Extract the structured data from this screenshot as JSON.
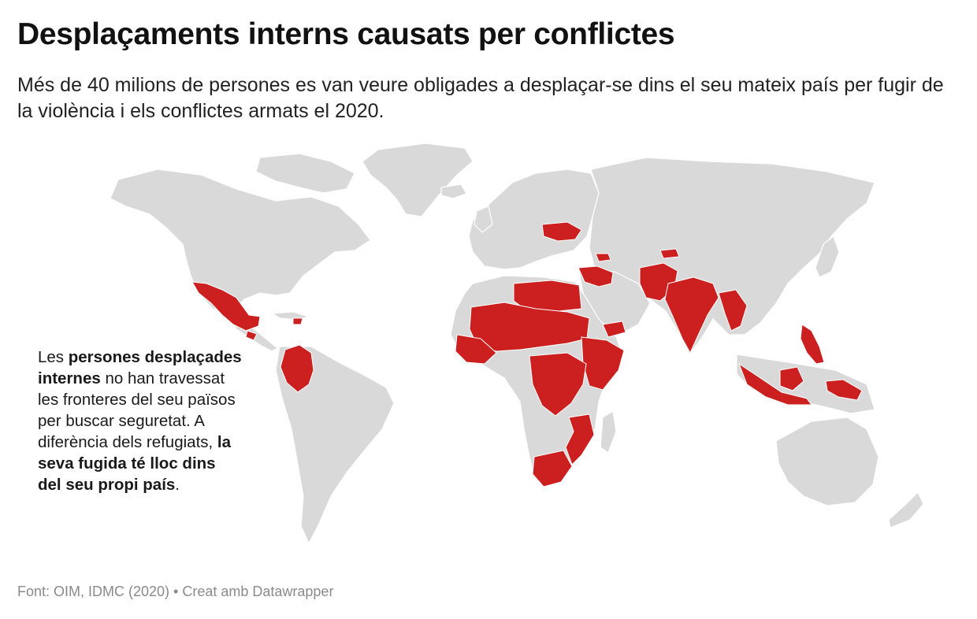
{
  "header": {
    "title": "Desplaçaments interns causats per conflictes",
    "subtitle": "Més de 40 milions de persones es van veure obligades a desplaçar-se dins el seu mateix país per fugir de la violència i els conflictes armats el 2020."
  },
  "note": {
    "t1": "Les ",
    "b1": "persones desplaçades internes",
    "t2": " no han travessat les fronteres del seu països per buscar seguretat. A diferència dels refugiats, ",
    "b2": "la seva fugida té lloc dins del seu propi país",
    "t3": "."
  },
  "footer": {
    "source": "Font: OIM, IDMC (2020) • Creat amb Datawrapper"
  },
  "colors": {
    "highlight": "#cc1f1f",
    "land": "#d9d9d9",
    "background": "#ffffff"
  }
}
